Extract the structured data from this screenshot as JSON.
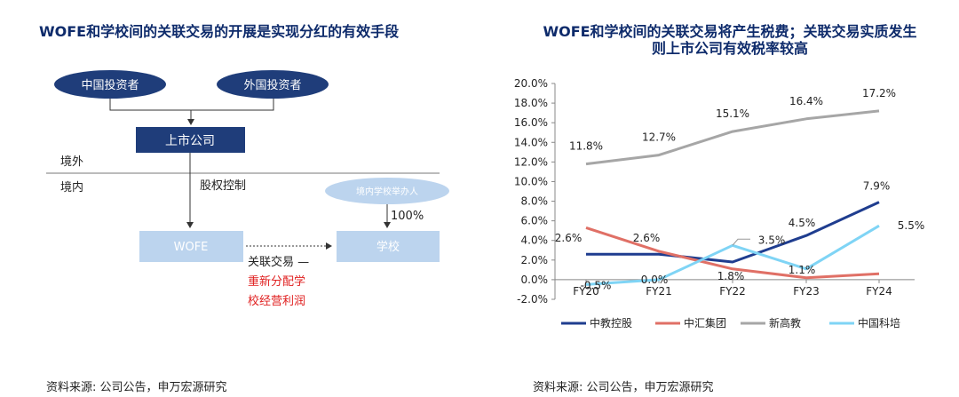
{
  "left": {
    "title": "WOFE和学校间的关联交易的开展是实现分红的有效手段",
    "diagram": {
      "investor_cn": "中国投资者",
      "investor_foreign": "外国投资者",
      "listed_company": "上市公司",
      "overseas": "境外",
      "domestic": "境内",
      "equity_control": "股权控制",
      "school_sponsor": "境内学校举办人",
      "ownership": "100%",
      "wofe": "WOFE",
      "school": "学校",
      "related_tx": "关联交易 —",
      "redistribute_1": "重新分配学",
      "redistribute_2": "校经营利润"
    },
    "source": "资料来源: 公司公告，申万宏源研究"
  },
  "right": {
    "title_line1": "WOFE和学校间的关联交易将产生税费；关联交易实质发生",
    "title_line2": "则上市公司有效税率较高",
    "source": "资料来源: 公司公告，申万宏源研究"
  },
  "colors": {
    "navy": "#1f3d7a",
    "lightblue": "#bcd4ee",
    "series": [
      "#1f3d8f",
      "#e07066",
      "#a6a6a6",
      "#7fd4f5"
    ]
  },
  "chart_data": {
    "type": "line",
    "x": [
      "FY20",
      "FY21",
      "FY22",
      "FY23",
      "FY24"
    ],
    "ylim": [
      -2.0,
      20.0
    ],
    "y_ticks": [
      "20.0%",
      "18.0%",
      "16.0%",
      "14.0%",
      "12.0%",
      "10.0%",
      "8.0%",
      "6.0%",
      "4.0%",
      "2.0%",
      "0.0%",
      "-2.0%"
    ],
    "series": [
      {
        "name": "中教控股",
        "values": [
          2.6,
          2.6,
          1.8,
          4.5,
          7.9
        ]
      },
      {
        "name": "中汇集团",
        "values": [
          5.3,
          2.9,
          1.1,
          0.2,
          0.6
        ]
      },
      {
        "name": "新高教",
        "values": [
          11.8,
          12.7,
          15.1,
          16.4,
          17.2
        ]
      },
      {
        "name": "中国科培",
        "values": [
          -0.5,
          0.0,
          3.5,
          1.1,
          5.5
        ]
      }
    ],
    "data_labels": [
      "11.8%",
      "12.7%",
      "15.1%",
      "16.4%",
      "17.2%",
      "2.6%",
      "2.6%",
      "1.8%",
      "4.5%",
      "7.9%",
      "-0.5%",
      "0.0%",
      "3.5%",
      "1.1%",
      "5.5%"
    ],
    "legend_position": "bottom",
    "grid": false
  }
}
